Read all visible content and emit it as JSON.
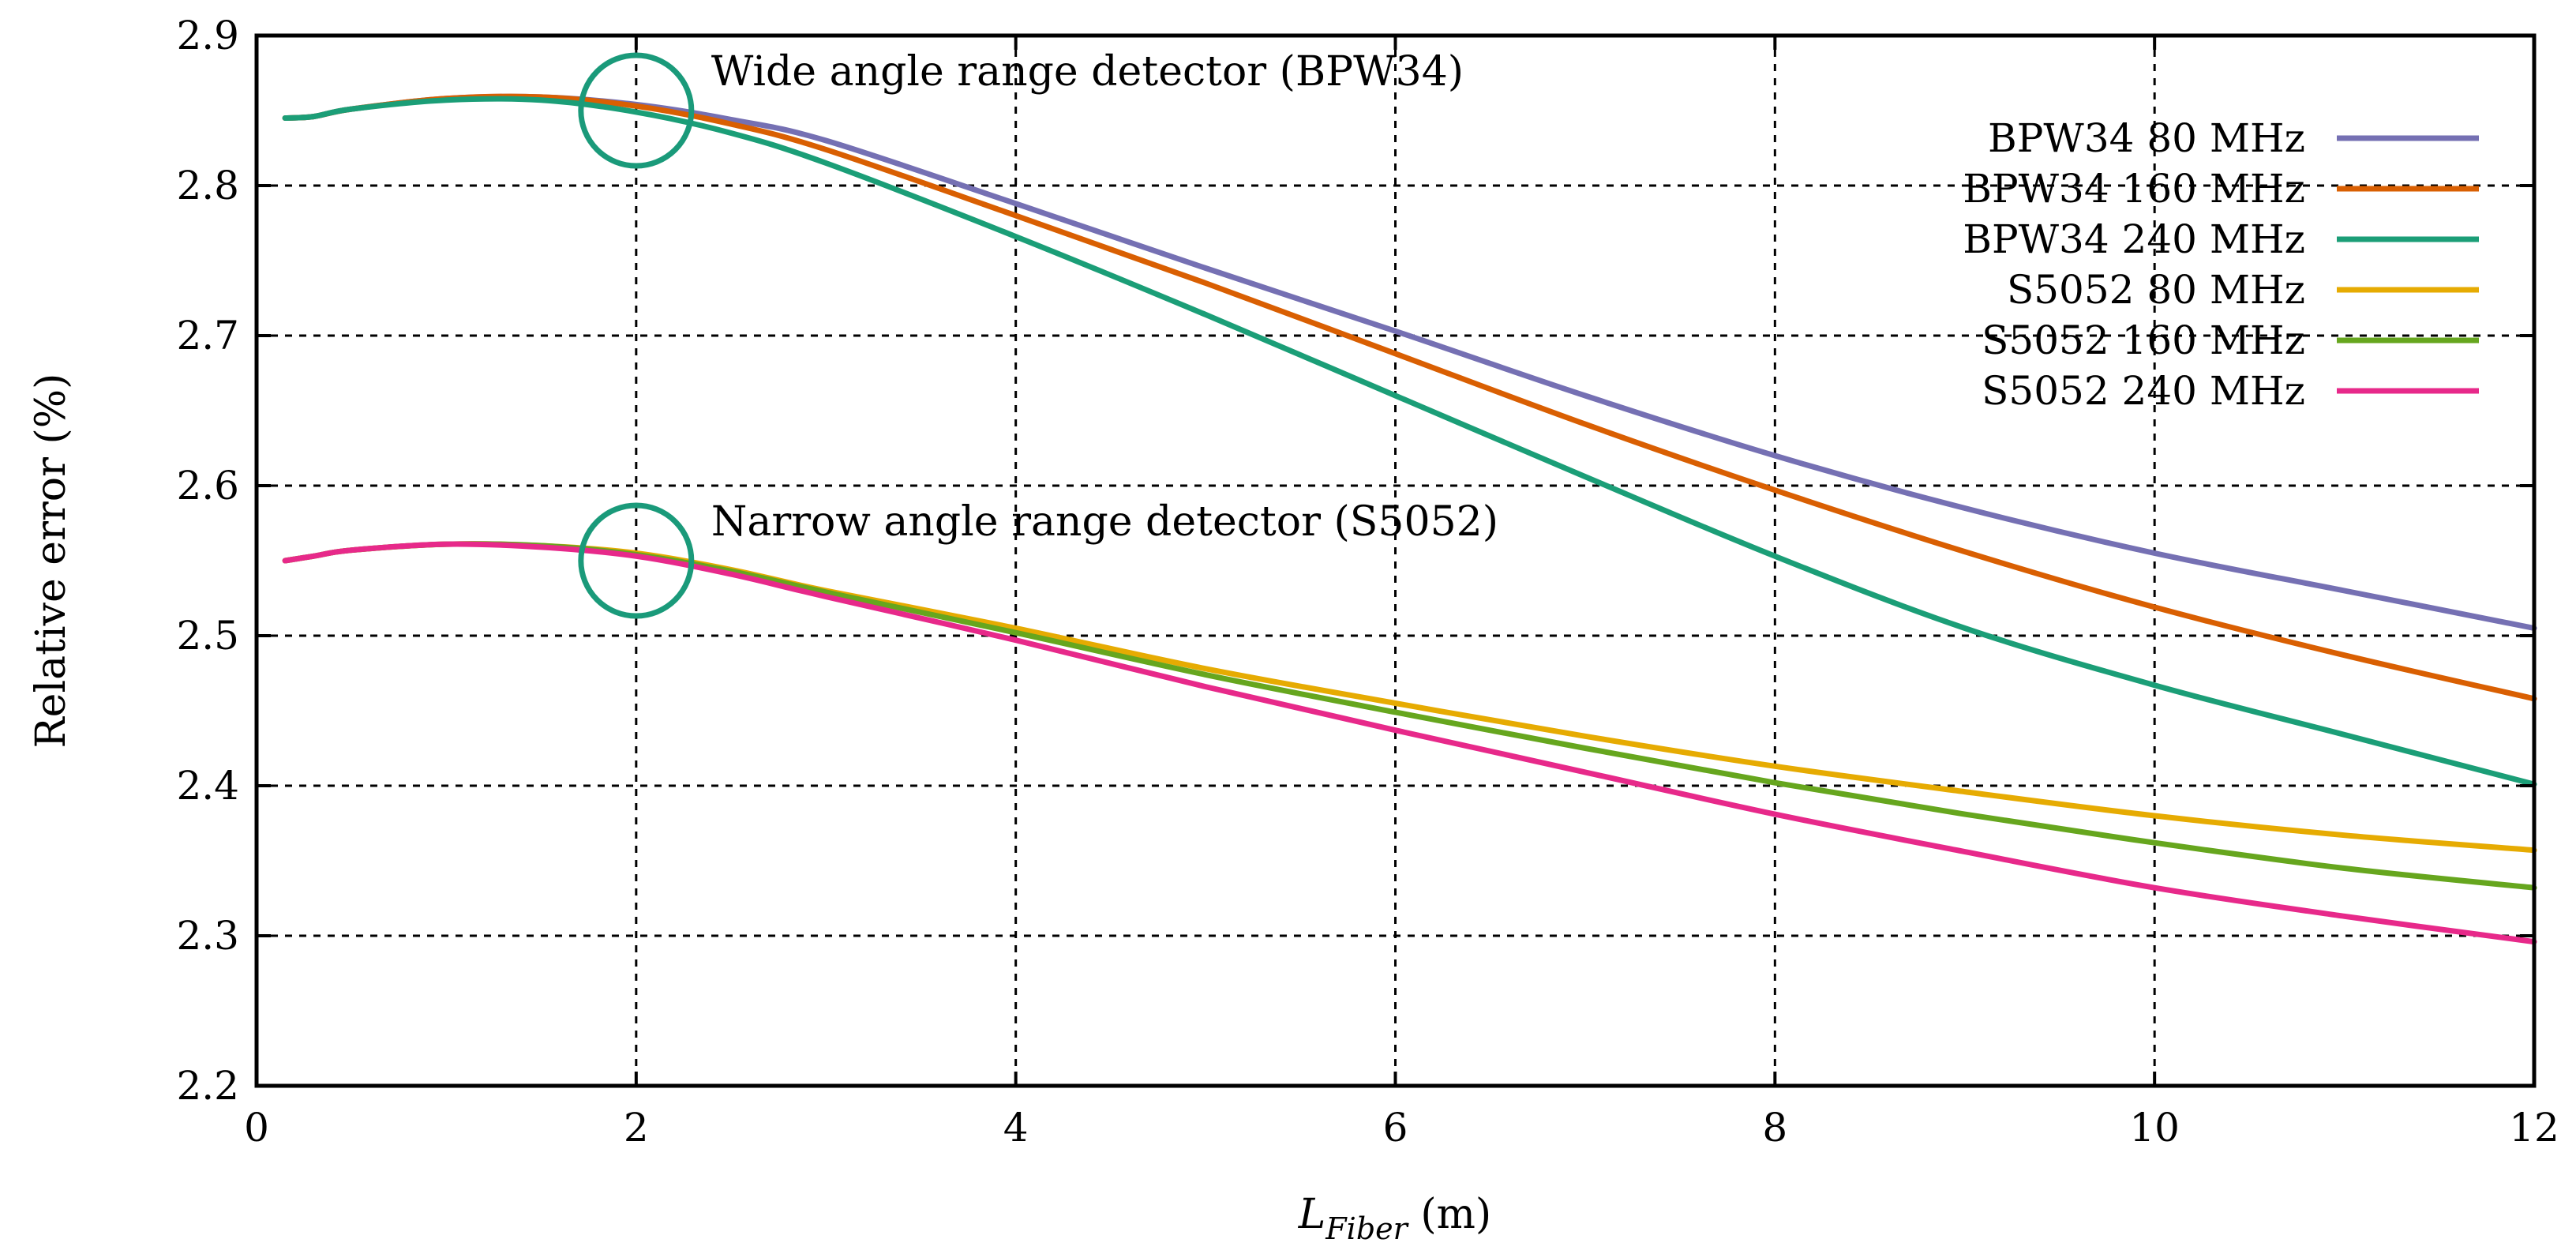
{
  "chart_data": {
    "type": "line",
    "title": "",
    "xlabel_main": "L",
    "xlabel_sub": "Fiber",
    "xlabel_unit": " (m)",
    "ylabel": "Relative error (%)",
    "xlim": [
      0,
      12
    ],
    "ylim": [
      2.2,
      2.9
    ],
    "xticks": [
      0,
      2,
      4,
      6,
      8,
      10,
      12
    ],
    "yticks": [
      2.2,
      2.3,
      2.4,
      2.5,
      2.6,
      2.7,
      2.8,
      2.9
    ],
    "xtick_labels": [
      "0",
      "2",
      "4",
      "6",
      "8",
      "10",
      "12"
    ],
    "ytick_labels": [
      "2.2",
      "2.3",
      "2.4",
      "2.5",
      "2.6",
      "2.7",
      "2.8",
      "2.9"
    ],
    "grid": true,
    "legend_position": "top-right",
    "x": [
      0.15,
      0.3,
      0.5,
      1.0,
      1.5,
      2.0,
      2.5,
      3.0,
      4.0,
      5.0,
      6.0,
      7.0,
      8.0,
      9.0,
      10.0,
      11.0,
      12.0
    ],
    "series": [
      {
        "name": "BPW34 80 MHz",
        "color": "#7570b3",
        "values": [
          2.845,
          2.846,
          2.851,
          2.858,
          2.859,
          2.854,
          2.844,
          2.83,
          2.788,
          2.745,
          2.703,
          2.66,
          2.62,
          2.585,
          2.555,
          2.53,
          2.505
        ]
      },
      {
        "name": "BPW34 160 MHz",
        "color": "#d95f02",
        "values": [
          2.845,
          2.846,
          2.851,
          2.858,
          2.859,
          2.853,
          2.841,
          2.824,
          2.78,
          2.735,
          2.688,
          2.641,
          2.597,
          2.556,
          2.519,
          2.487,
          2.458
        ]
      },
      {
        "name": "BPW34 240 MHz",
        "color": "#1b9e77",
        "values": [
          2.845,
          2.846,
          2.851,
          2.857,
          2.857,
          2.849,
          2.835,
          2.815,
          2.766,
          2.714,
          2.66,
          2.606,
          2.553,
          2.505,
          2.467,
          2.434,
          2.401
        ]
      },
      {
        "name": "S5052 80 MHz",
        "color": "#e6ab02",
        "values": [
          2.55,
          2.553,
          2.557,
          2.561,
          2.56,
          2.555,
          2.544,
          2.53,
          2.505,
          2.478,
          2.455,
          2.433,
          2.413,
          2.396,
          2.38,
          2.367,
          2.357
        ]
      },
      {
        "name": "S5052 160 MHz",
        "color": "#66a61e",
        "values": [
          2.55,
          2.553,
          2.557,
          2.561,
          2.56,
          2.554,
          2.543,
          2.529,
          2.502,
          2.474,
          2.449,
          2.425,
          2.402,
          2.381,
          2.362,
          2.345,
          2.332
        ]
      },
      {
        "name": "S5052 240 MHz",
        "color": "#e7298a",
        "values": [
          2.55,
          2.553,
          2.557,
          2.561,
          2.559,
          2.553,
          2.541,
          2.526,
          2.497,
          2.466,
          2.437,
          2.409,
          2.381,
          2.356,
          2.332,
          2.313,
          2.296
        ]
      }
    ],
    "annotations": [
      {
        "text": "Wide angle range detector (BPW34)",
        "x": 2.0,
        "y": 2.85
      },
      {
        "text": "Narrow angle range detector (S5052)",
        "x": 2.0,
        "y": 2.55
      }
    ],
    "annotation_color": "#1b9e77"
  }
}
